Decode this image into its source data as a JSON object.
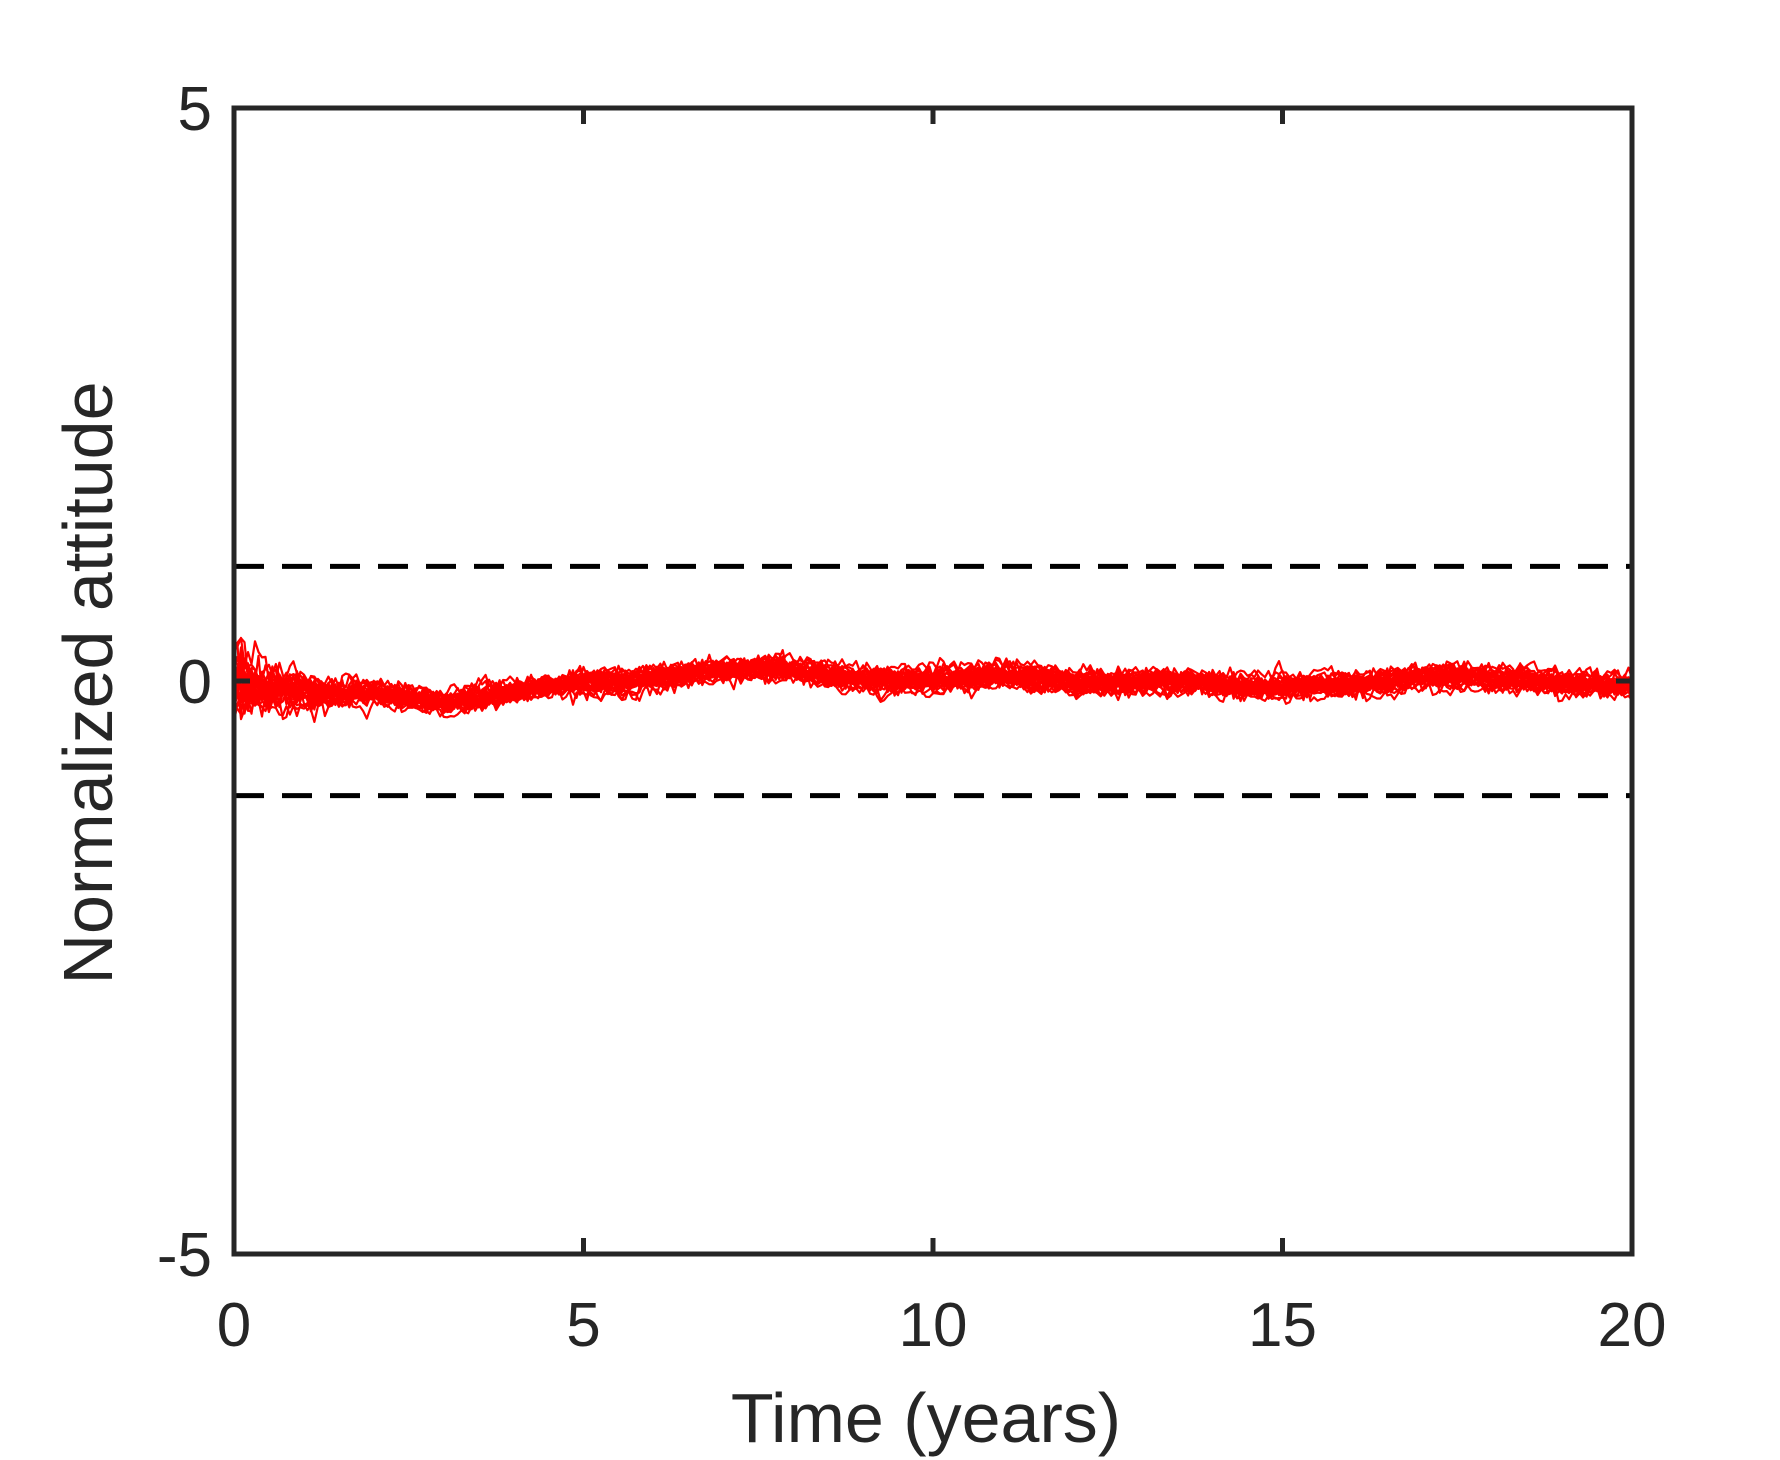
{
  "chart_data": {
    "type": "line",
    "title": "",
    "xlabel": "Time (years)",
    "ylabel": "Normalized attitude",
    "xlim": [
      0,
      20
    ],
    "ylim": [
      -5,
      5
    ],
    "xticks": [
      0,
      5,
      10,
      15,
      20
    ],
    "yticks": [
      -5,
      0,
      5
    ],
    "xtick_labels": [
      "0",
      "5",
      "10",
      "15",
      "20"
    ],
    "ytick_labels": [
      "-5",
      "0",
      "5"
    ],
    "grid": false,
    "legend": "none",
    "colors": {
      "series": "#ff0000",
      "threshold": "#000000",
      "axes": "#262626"
    },
    "threshold_lines": [
      {
        "y": 1,
        "style": "dashed"
      },
      {
        "y": -1,
        "style": "dashed"
      }
    ],
    "ensemble": {
      "count": 30,
      "x": [
        0,
        0.5,
        1,
        1.5,
        2,
        2.5,
        3,
        3.5,
        4,
        4.5,
        5,
        5.5,
        6,
        6.5,
        7,
        7.5,
        8,
        8.5,
        9,
        9.5,
        10,
        10.5,
        11,
        11.5,
        12,
        12.5,
        13,
        13.5,
        14,
        14.5,
        15,
        15.5,
        16,
        16.5,
        17,
        17.5,
        18,
        18.5,
        19,
        19.5,
        20
      ],
      "mean": [
        0,
        -0.05,
        -0.1,
        -0.12,
        -0.1,
        -0.15,
        -0.2,
        -0.15,
        -0.1,
        -0.05,
        0,
        -0.02,
        0.02,
        0.05,
        0.08,
        0.12,
        0.1,
        0.05,
        0.02,
        0,
        0,
        0.02,
        0.05,
        0.03,
        0,
        -0.02,
        0,
        0,
        -0.02,
        -0.05,
        -0.05,
        -0.03,
        -0.02,
        0,
        0.03,
        0.05,
        0.02,
        0,
        -0.02,
        -0.03,
        -0.05
      ],
      "band_halfwidth": [
        0.45,
        0.3,
        0.22,
        0.18,
        0.15,
        0.15,
        0.15,
        0.15,
        0.15,
        0.15,
        0.15,
        0.15,
        0.15,
        0.15,
        0.15,
        0.15,
        0.15,
        0.15,
        0.15,
        0.15,
        0.15,
        0.15,
        0.15,
        0.15,
        0.15,
        0.15,
        0.15,
        0.15,
        0.15,
        0.15,
        0.15,
        0.15,
        0.15,
        0.15,
        0.15,
        0.15,
        0.15,
        0.15,
        0.15,
        0.15,
        0.15
      ],
      "max_excursion": 0.45
    }
  }
}
